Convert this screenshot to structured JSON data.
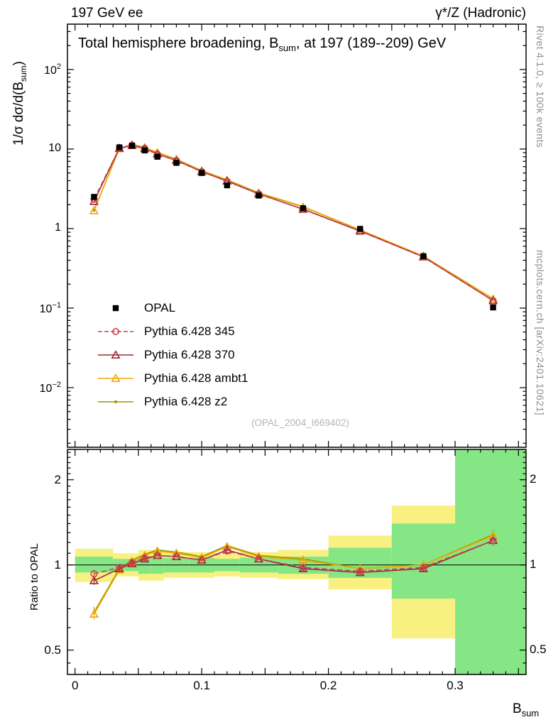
{
  "header": {
    "left": "197 GeV ee",
    "right": "γ*/Z (Hadronic)"
  },
  "main_plot": {
    "title_pre": "Total hemisphere broadening, B",
    "title_sub": "sum",
    "title_post": ", at 197 (189--209) GeV",
    "ylabel_pre": "1/σ  dσ/d(B",
    "ylabel_sub": "sum",
    "ylabel_post": ")",
    "watermark": "(OPAL_2004_I669402)"
  },
  "ratio_plot": {
    "ylabel": "Ratio to OPAL"
  },
  "xaxis": {
    "label_pre": "B",
    "label_sub": "sum"
  },
  "side_text": {
    "top": "Rivet 4.1.0, ≥ 100k events",
    "bottom": "mcplots.cern.ch [arXiv:2401.10621]"
  },
  "legend": {
    "items": [
      {
        "label": "OPAL",
        "color": "#000000",
        "line": "none",
        "marker": "square"
      },
      {
        "label": "Pythia 6.428 345",
        "color": "#cc4455",
        "line": "dashed",
        "marker": "circle"
      },
      {
        "label": "Pythia 6.428 370",
        "color": "#a12830",
        "line": "solid",
        "marker": "triangle"
      },
      {
        "label": "Pythia 6.428 ambt1",
        "color": "#f0a800",
        "line": "solid",
        "marker": "triangle"
      },
      {
        "label": "Pythia 6.428 z2",
        "color": "#9a9a00",
        "line": "solid",
        "marker": "dot"
      }
    ]
  },
  "colors": {
    "band_yellow": "#f8f080",
    "band_green": "#86e686",
    "frame": "#000000"
  },
  "chart_data": [
    {
      "type": "line",
      "panel": "main",
      "yscale": "log",
      "title": "Total hemisphere broadening, B_sum, at 197 (189--209) GeV",
      "xlabel": "B_sum",
      "ylabel": "1/σ dσ/d(B_sum)",
      "xlim": [
        -0.006,
        0.356
      ],
      "ylim": [
        0.00178,
        371.5
      ],
      "xticks_labeled": [
        {
          "v": 0,
          "t": "0"
        },
        {
          "v": 0.1,
          "t": "0.1"
        },
        {
          "v": 0.2,
          "t": "0.2"
        },
        {
          "v": 0.3,
          "t": "0.3"
        }
      ],
      "yticks_labeled": [
        {
          "v": 100,
          "base": "10",
          "exp": "2"
        },
        {
          "v": 10,
          "base": "10",
          "exp": ""
        },
        {
          "v": 1,
          "base": "1",
          "exp": ""
        },
        {
          "v": 0.1,
          "base": "10",
          "exp": "−1"
        },
        {
          "v": 0.01,
          "base": "10",
          "exp": "−2"
        }
      ],
      "x": [
        0.015,
        0.035,
        0.045,
        0.055,
        0.065,
        0.08,
        0.1,
        0.12,
        0.145,
        0.18,
        0.225,
        0.275,
        0.33
      ],
      "series": [
        {
          "name": "OPAL",
          "color": "#000000",
          "line": "none",
          "marker": "square",
          "values": [
            2.5,
            10.5,
            11.0,
            9.6,
            8.0,
            6.7,
            5.0,
            3.5,
            2.6,
            1.8,
            0.99,
            0.45,
            0.102
          ]
        },
        {
          "name": "Pythia 6.428 345",
          "color": "#cc4455",
          "line": "dashed",
          "marker": "circle",
          "values": [
            2.33,
            10.3,
            11.2,
            10.2,
            8.64,
            7.17,
            5.2,
            3.92,
            2.73,
            1.76,
            0.94,
            0.44,
            0.124
          ]
        },
        {
          "name": "Pythia 6.428 370",
          "color": "#a12830",
          "line": "solid",
          "marker": "triangle",
          "values": [
            2.2,
            10.2,
            11.1,
            10.1,
            8.64,
            7.17,
            5.2,
            3.96,
            2.73,
            1.75,
            0.93,
            0.44,
            0.124
          ]
        },
        {
          "name": "Pythia 6.428 ambt1",
          "color": "#f0a800",
          "line": "solid",
          "marker": "triangle",
          "values": [
            1.68,
            10.1,
            11.3,
            10.4,
            8.96,
            7.37,
            5.3,
            4.06,
            2.78,
            1.87,
            0.96,
            0.45,
            0.13
          ]
        },
        {
          "name": "Pythia 6.428 z2",
          "color": "#9a9a00",
          "line": "solid",
          "marker": "dot",
          "values": [
            1.7,
            10.2,
            11.4,
            10.5,
            9.04,
            7.44,
            5.35,
            4.1,
            2.81,
            1.89,
            0.96,
            0.45,
            0.131
          ]
        }
      ]
    },
    {
      "type": "ratio",
      "panel": "ratio",
      "yscale": "log",
      "ylabel": "Ratio to OPAL",
      "reference": "OPAL",
      "xlim": [
        -0.006,
        0.356
      ],
      "ylim": [
        0.41,
        2.56
      ],
      "yticks_labeled": [
        {
          "v": 0.5,
          "t": "0.5"
        },
        {
          "v": 1,
          "t": "1"
        },
        {
          "v": 2,
          "t": "2"
        }
      ],
      "bin_edges": [
        0,
        0.03,
        0.04,
        0.05,
        0.06,
        0.07,
        0.09,
        0.11,
        0.13,
        0.16,
        0.2,
        0.25,
        0.3,
        0.36
      ],
      "bands": {
        "yellow": [
          [
            0.87,
            1.14
          ],
          [
            0.91,
            1.1
          ],
          [
            0.91,
            1.1
          ],
          [
            0.88,
            1.13
          ],
          [
            0.88,
            1.13
          ],
          [
            0.9,
            1.11
          ],
          [
            0.9,
            1.11
          ],
          [
            0.91,
            1.1
          ],
          [
            0.9,
            1.11
          ],
          [
            0.89,
            1.13
          ],
          [
            0.82,
            1.27
          ],
          [
            0.55,
            1.62
          ],
          [
            0.41,
            2.56
          ]
        ],
        "green": [
          [
            0.94,
            1.07
          ],
          [
            0.95,
            1.05
          ],
          [
            0.95,
            1.05
          ],
          [
            0.93,
            1.07
          ],
          [
            0.93,
            1.07
          ],
          [
            0.94,
            1.06
          ],
          [
            0.94,
            1.06
          ],
          [
            0.95,
            1.05
          ],
          [
            0.94,
            1.06
          ],
          [
            0.93,
            1.07
          ],
          [
            0.9,
            1.15
          ],
          [
            0.76,
            1.4
          ],
          [
            0.41,
            2.56
          ]
        ]
      },
      "x": [
        0.015,
        0.035,
        0.045,
        0.055,
        0.065,
        0.08,
        0.1,
        0.12,
        0.145,
        0.18,
        0.225,
        0.275,
        0.33
      ],
      "series": [
        {
          "name": "Pythia 6.428 345",
          "color": "#cc4455",
          "line": "dashed",
          "marker": "circle",
          "values": [
            0.93,
            0.98,
            1.02,
            1.06,
            1.08,
            1.07,
            1.04,
            1.12,
            1.05,
            0.98,
            0.95,
            0.98,
            1.22
          ],
          "err": [
            0.03,
            0.01,
            0.01,
            0.01,
            0.01,
            0.01,
            0.01,
            0.01,
            0.01,
            0.01,
            0.015,
            0.02,
            0.05
          ]
        },
        {
          "name": "Pythia 6.428 370",
          "color": "#a12830",
          "line": "solid",
          "marker": "triangle",
          "values": [
            0.88,
            0.97,
            1.01,
            1.05,
            1.08,
            1.07,
            1.04,
            1.13,
            1.05,
            0.97,
            0.94,
            0.97,
            1.22
          ],
          "err": [
            0.03,
            0.01,
            0.01,
            0.01,
            0.01,
            0.01,
            0.01,
            0.01,
            0.01,
            0.01,
            0.015,
            0.02,
            0.05
          ]
        },
        {
          "name": "Pythia 6.428 ambt1",
          "color": "#f0a800",
          "line": "solid",
          "marker": "triangle",
          "values": [
            0.67,
            0.96,
            1.03,
            1.08,
            1.12,
            1.1,
            1.06,
            1.16,
            1.07,
            1.04,
            0.97,
            1.0,
            1.27
          ],
          "err": [
            0.03,
            0.01,
            0.01,
            0.01,
            0.01,
            0.01,
            0.01,
            0.01,
            0.01,
            0.01,
            0.015,
            0.02,
            0.05
          ]
        },
        {
          "name": "Pythia 6.428 z2",
          "color": "#9a9a00",
          "line": "solid",
          "marker": "dot",
          "values": [
            0.68,
            0.97,
            1.04,
            1.09,
            1.13,
            1.11,
            1.07,
            1.17,
            1.08,
            1.05,
            0.97,
            1.0,
            1.28
          ],
          "err": [
            0.03,
            0.01,
            0.01,
            0.01,
            0.01,
            0.01,
            0.01,
            0.01,
            0.01,
            0.01,
            0.015,
            0.02,
            0.05
          ]
        }
      ]
    }
  ]
}
